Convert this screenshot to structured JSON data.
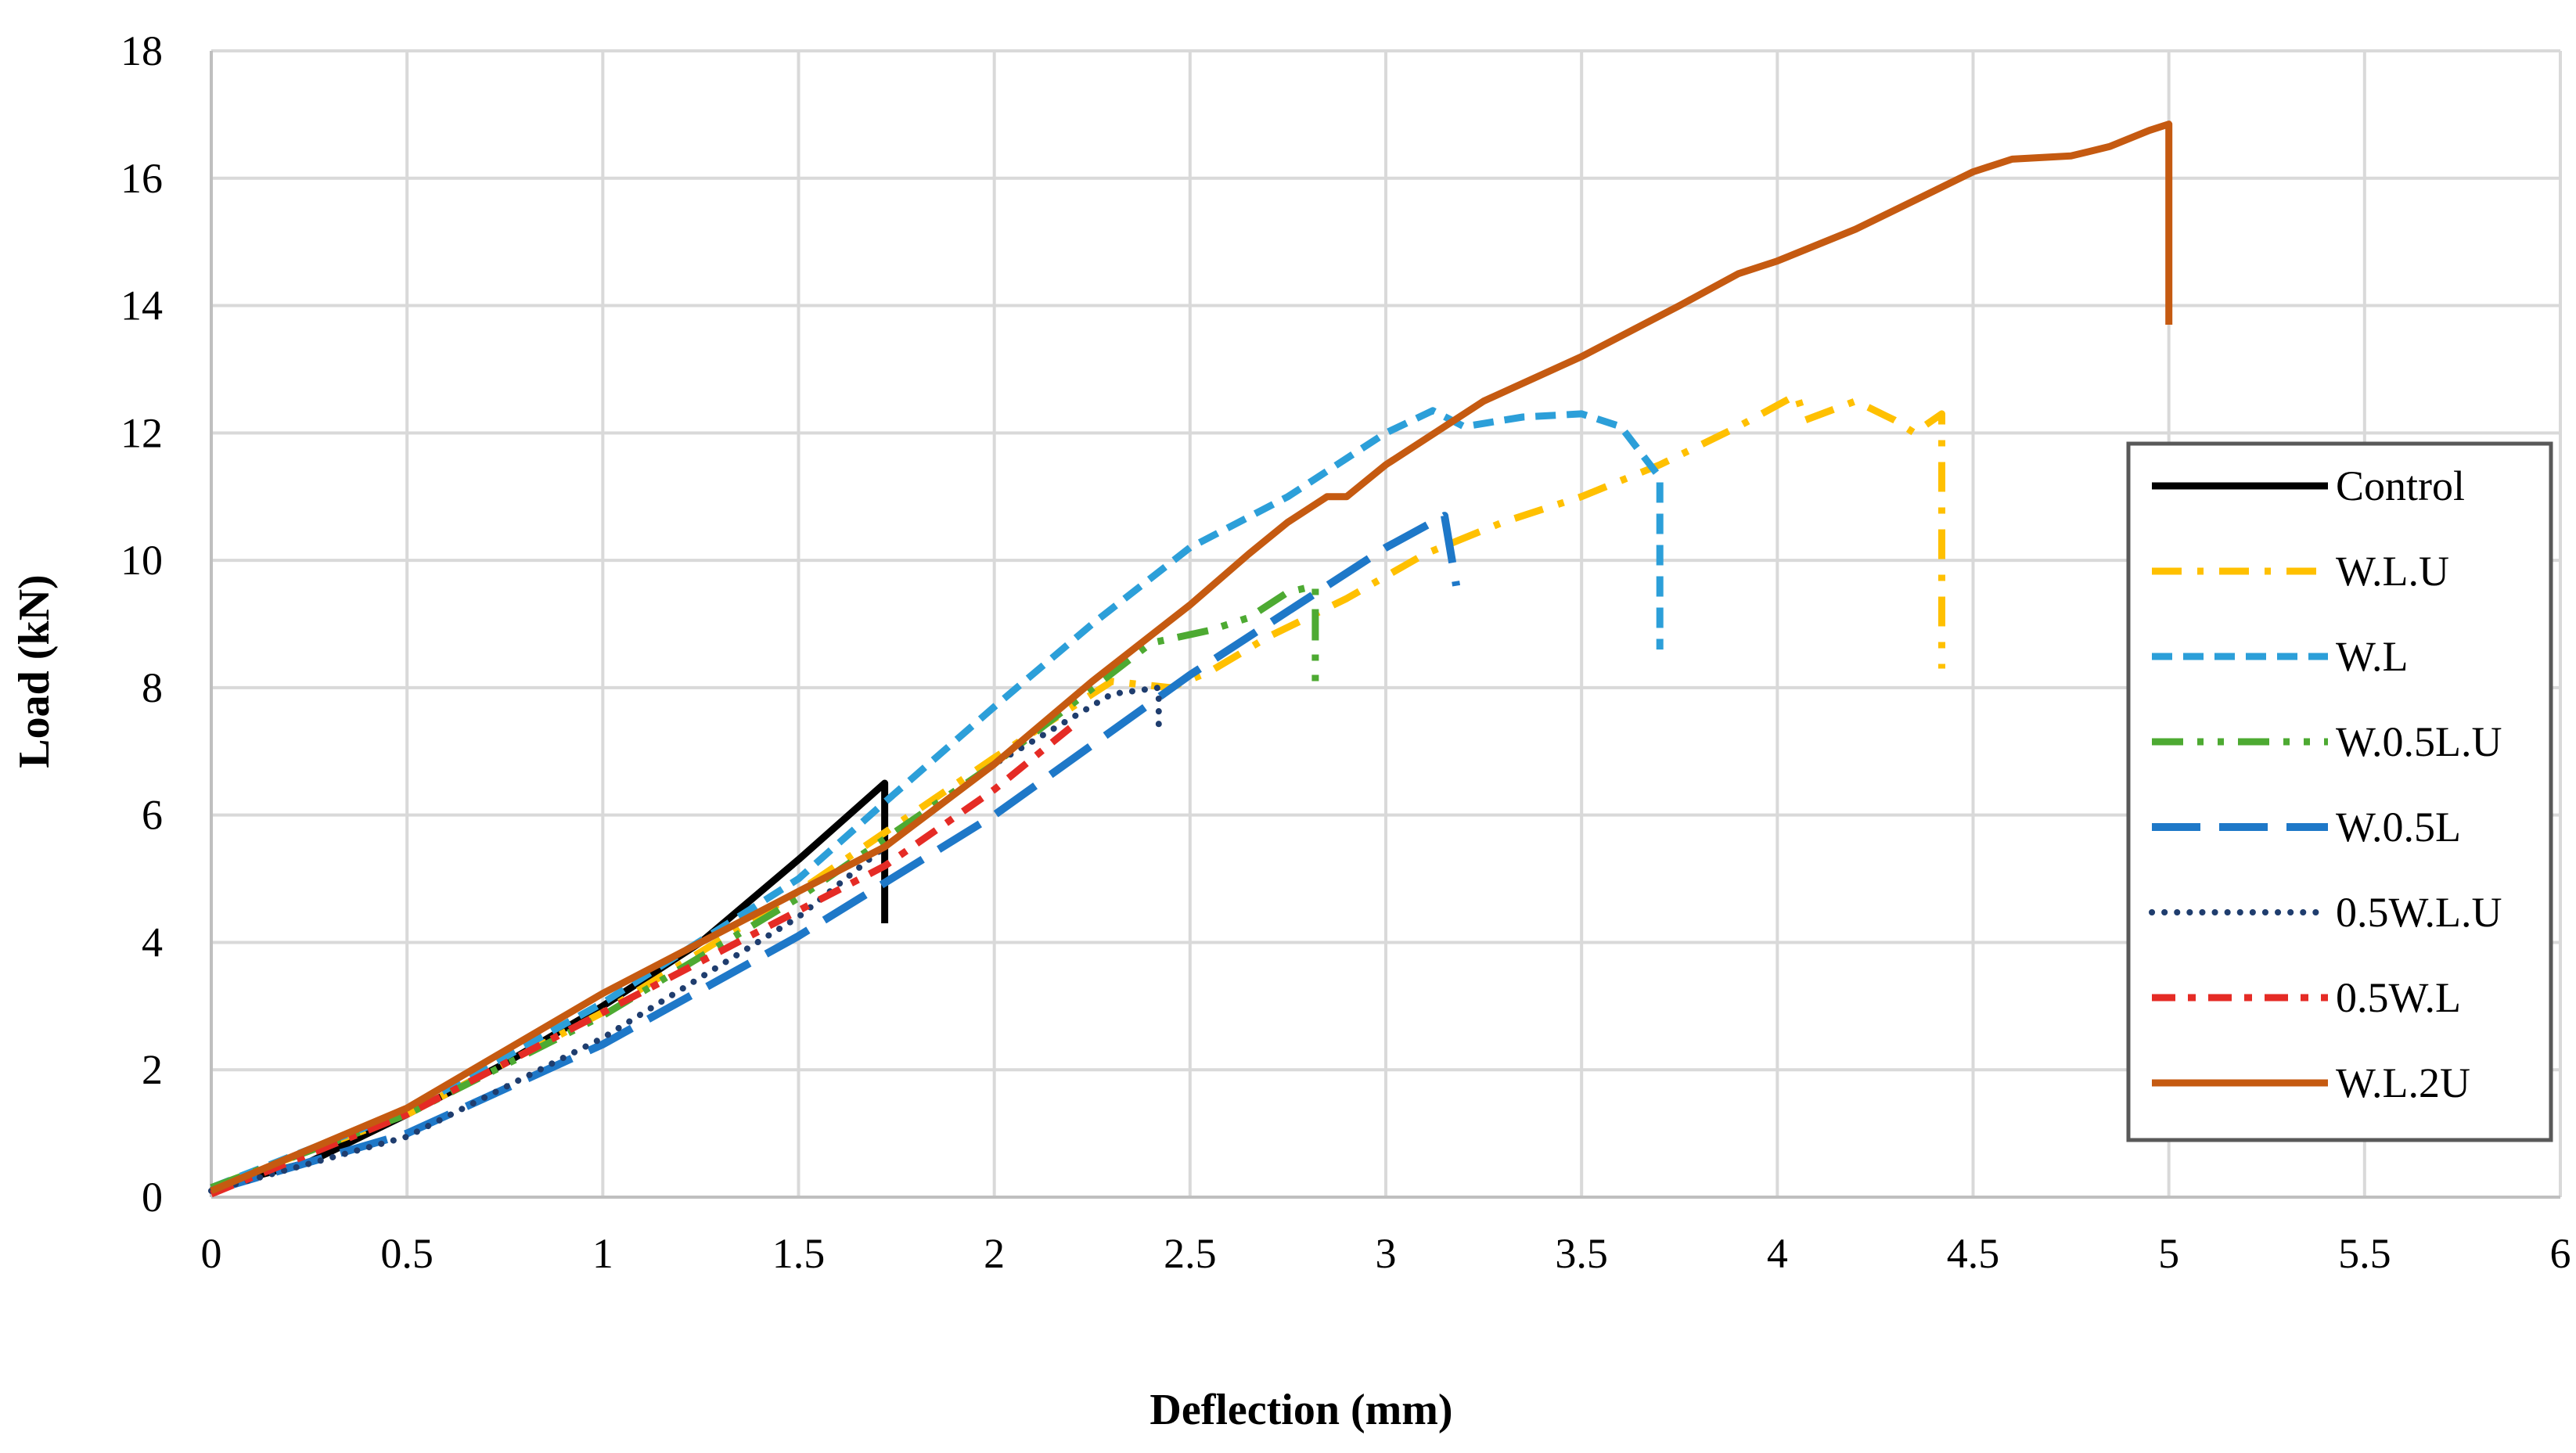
{
  "chart_data": {
    "type": "line",
    "title": "",
    "xlabel": "Deflection (mm)",
    "ylabel": "Load (kN)",
    "xlim": [
      0,
      6
    ],
    "ylim": [
      0,
      18
    ],
    "xticks": [
      0,
      0.5,
      1,
      1.5,
      2,
      2.5,
      3,
      3.5,
      4,
      4.5,
      5,
      5.5,
      6
    ],
    "yticks": [
      0,
      2,
      4,
      6,
      8,
      10,
      12,
      14,
      16,
      18
    ],
    "grid": true,
    "legend_position": "right",
    "series": [
      {
        "name": "Control",
        "color": "#000000",
        "dash": "solid",
        "points": [
          [
            0,
            0.15
          ],
          [
            0.25,
            0.55
          ],
          [
            0.5,
            1.3
          ],
          [
            0.75,
            2.1
          ],
          [
            1.0,
            3.0
          ],
          [
            1.25,
            4.0
          ],
          [
            1.5,
            5.3
          ],
          [
            1.72,
            6.5
          ],
          [
            1.72,
            4.3
          ]
        ]
      },
      {
        "name": "W.L.U",
        "color": "#FFC000",
        "dash": "dashdot",
        "points": [
          [
            0,
            0.15
          ],
          [
            0.5,
            1.3
          ],
          [
            1.0,
            2.9
          ],
          [
            1.5,
            4.8
          ],
          [
            2.0,
            6.9
          ],
          [
            2.3,
            8.1
          ],
          [
            2.45,
            8.0
          ],
          [
            2.55,
            8.25
          ],
          [
            2.7,
            8.8
          ],
          [
            2.9,
            9.4
          ],
          [
            3.1,
            10.1
          ],
          [
            3.3,
            10.6
          ],
          [
            3.5,
            11.0
          ],
          [
            3.7,
            11.5
          ],
          [
            3.9,
            12.1
          ],
          [
            4.02,
            12.5
          ],
          [
            4.05,
            12.6
          ],
          [
            4.07,
            12.2
          ],
          [
            4.2,
            12.5
          ],
          [
            4.3,
            12.2
          ],
          [
            4.35,
            12.0
          ],
          [
            4.42,
            12.3
          ],
          [
            4.42,
            10.0
          ],
          [
            4.42,
            8.3
          ]
        ]
      },
      {
        "name": "W.L",
        "color": "#2C9FD9",
        "dash": "dash",
        "points": [
          [
            0,
            0.15
          ],
          [
            0.5,
            1.35
          ],
          [
            1.0,
            3.05
          ],
          [
            1.5,
            5.0
          ],
          [
            1.72,
            6.2
          ],
          [
            2.0,
            7.7
          ],
          [
            2.25,
            9.0
          ],
          [
            2.5,
            10.2
          ],
          [
            2.75,
            11.0
          ],
          [
            3.0,
            12.0
          ],
          [
            3.12,
            12.35
          ],
          [
            3.2,
            12.1
          ],
          [
            3.35,
            12.25
          ],
          [
            3.5,
            12.3
          ],
          [
            3.6,
            12.1
          ],
          [
            3.7,
            11.3
          ],
          [
            3.7,
            8.6
          ]
        ]
      },
      {
        "name": "W.0.5L.U",
        "color": "#4DAA32",
        "dash": "dashdotdot",
        "points": [
          [
            0,
            0.15
          ],
          [
            0.5,
            1.3
          ],
          [
            1.0,
            2.85
          ],
          [
            1.5,
            4.7
          ],
          [
            2.0,
            6.8
          ],
          [
            2.4,
            8.7
          ],
          [
            2.55,
            8.9
          ],
          [
            2.65,
            9.1
          ],
          [
            2.75,
            9.5
          ],
          [
            2.82,
            9.6
          ],
          [
            2.82,
            8.0
          ]
        ]
      },
      {
        "name": "W.0.5L",
        "color": "#1E78C8",
        "dash": "longdash",
        "points": [
          [
            0,
            0.1
          ],
          [
            0.5,
            1.0
          ],
          [
            1.0,
            2.4
          ],
          [
            1.5,
            4.1
          ],
          [
            2.0,
            6.0
          ],
          [
            2.5,
            8.2
          ],
          [
            2.8,
            9.4
          ],
          [
            3.0,
            10.2
          ],
          [
            3.15,
            10.7
          ],
          [
            3.18,
            9.6
          ]
        ]
      },
      {
        "name": "0.5W.L.U",
        "color": "#1F3D6E",
        "dash": "dot",
        "points": [
          [
            0,
            0.1
          ],
          [
            0.5,
            0.95
          ],
          [
            1.0,
            2.5
          ],
          [
            1.5,
            4.4
          ],
          [
            1.72,
            5.5
          ],
          [
            2.0,
            6.8
          ],
          [
            2.3,
            7.9
          ],
          [
            2.42,
            8.0
          ],
          [
            2.42,
            7.4
          ]
        ]
      },
      {
        "name": "0.5W.L",
        "color": "#E52B25",
        "dash": "dashdot2",
        "points": [
          [
            0,
            0.05
          ],
          [
            0.5,
            1.3
          ],
          [
            1.0,
            2.9
          ],
          [
            1.5,
            4.5
          ],
          [
            1.72,
            5.2
          ],
          [
            2.0,
            6.4
          ],
          [
            2.2,
            7.4
          ]
        ]
      },
      {
        "name": "W.L.2U",
        "color": "#C55A11",
        "dash": "solid",
        "points": [
          [
            0,
            0.1
          ],
          [
            0.5,
            1.4
          ],
          [
            1.0,
            3.2
          ],
          [
            1.5,
            4.8
          ],
          [
            1.72,
            5.5
          ],
          [
            2.0,
            6.8
          ],
          [
            2.25,
            8.1
          ],
          [
            2.5,
            9.3
          ],
          [
            2.65,
            10.1
          ],
          [
            2.75,
            10.6
          ],
          [
            2.85,
            11.0
          ],
          [
            2.9,
            11.0
          ],
          [
            3.0,
            11.5
          ],
          [
            3.1,
            11.9
          ],
          [
            3.25,
            12.5
          ],
          [
            3.5,
            13.2
          ],
          [
            3.75,
            14.0
          ],
          [
            3.9,
            14.5
          ],
          [
            4.0,
            14.7
          ],
          [
            4.2,
            15.2
          ],
          [
            4.4,
            15.8
          ],
          [
            4.5,
            16.1
          ],
          [
            4.6,
            16.3
          ],
          [
            4.75,
            16.35
          ],
          [
            4.85,
            16.5
          ],
          [
            4.95,
            16.75
          ],
          [
            5.0,
            16.85
          ],
          [
            5.0,
            13.7
          ]
        ]
      }
    ]
  }
}
